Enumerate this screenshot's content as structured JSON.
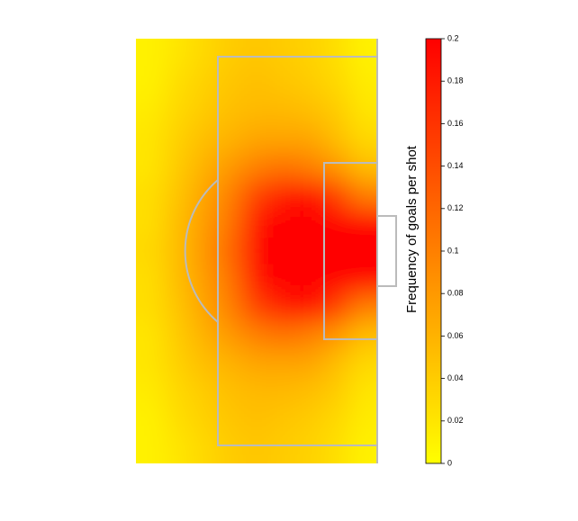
{
  "chart_data": {
    "type": "heatmap",
    "colorbar_label": "Frequency of goals per shot",
    "colormap": [
      "#ffff00",
      "#ff0000"
    ],
    "zlim": [
      0,
      0.2
    ],
    "zticks": [
      0,
      0.02,
      0.04,
      0.06,
      0.08,
      0.1,
      0.12,
      0.14,
      0.16,
      0.18,
      0.2
    ],
    "z": [
      [
        0.01,
        0.02,
        0.03,
        0.04,
        0.045,
        0.04,
        0.035,
        0.025,
        0.01
      ],
      [
        0.01,
        0.025,
        0.035,
        0.045,
        0.05,
        0.045,
        0.04,
        0.03,
        0.015
      ],
      [
        0.015,
        0.03,
        0.04,
        0.05,
        0.055,
        0.055,
        0.05,
        0.04,
        0.02
      ],
      [
        0.02,
        0.035,
        0.05,
        0.06,
        0.07,
        0.07,
        0.07,
        0.05,
        0.03
      ],
      [
        0.02,
        0.04,
        0.06,
        0.08,
        0.1,
        0.11,
        0.1,
        0.08,
        0.05
      ],
      [
        0.025,
        0.045,
        0.07,
        0.1,
        0.15,
        0.18,
        0.2,
        0.15,
        0.1
      ],
      [
        0.025,
        0.05,
        0.075,
        0.11,
        0.19,
        0.2,
        0.2,
        0.2,
        0.2
      ],
      [
        0.03,
        0.05,
        0.08,
        0.12,
        0.2,
        0.2,
        0.2,
        0.2,
        0.2
      ],
      [
        0.025,
        0.05,
        0.075,
        0.11,
        0.19,
        0.2,
        0.2,
        0.2,
        0.2
      ],
      [
        0.025,
        0.045,
        0.07,
        0.1,
        0.15,
        0.18,
        0.2,
        0.15,
        0.1
      ],
      [
        0.02,
        0.04,
        0.06,
        0.08,
        0.1,
        0.11,
        0.1,
        0.08,
        0.05
      ],
      [
        0.02,
        0.035,
        0.05,
        0.06,
        0.07,
        0.07,
        0.07,
        0.05,
        0.03
      ],
      [
        0.015,
        0.03,
        0.04,
        0.05,
        0.055,
        0.055,
        0.05,
        0.04,
        0.02
      ],
      [
        0.01,
        0.025,
        0.035,
        0.045,
        0.05,
        0.045,
        0.04,
        0.03,
        0.015
      ],
      [
        0.01,
        0.02,
        0.03,
        0.04,
        0.045,
        0.04,
        0.035,
        0.025,
        0.01
      ]
    ]
  }
}
